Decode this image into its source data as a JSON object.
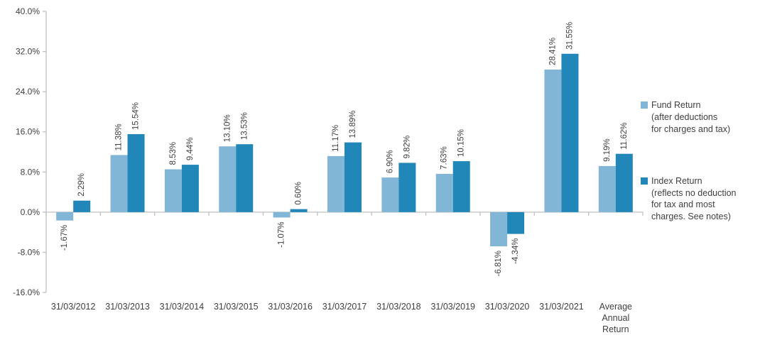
{
  "chart_data": {
    "type": "bar",
    "categories": [
      "31/03/2012",
      "31/03/2013",
      "31/03/2014",
      "31/03/2015",
      "31/03/2016",
      "31/03/2017",
      "31/03/2018",
      "31/03/2019",
      "31/03/2020",
      "31/03/2021",
      "Average\nAnnual\nReturn"
    ],
    "series": [
      {
        "name": "Fund Return (after deductions for charges and tax)",
        "color": "#82b6d7",
        "values": [
          -1.67,
          11.38,
          8.53,
          13.1,
          -1.07,
          11.17,
          6.9,
          7.63,
          -6.81,
          28.41,
          9.19
        ],
        "labels": [
          "-1.67%",
          "11.38%",
          "8.53%",
          "13.10%",
          "-1.07%",
          "11.17%",
          "6.90%",
          "7.63%",
          "-6.81%",
          "28.41%",
          "9.19%"
        ]
      },
      {
        "name": "Index Return (reflects no deduction for tax and most charges. See notes)",
        "color": "#2186b8",
        "values": [
          2.29,
          15.54,
          9.44,
          13.53,
          0.6,
          13.89,
          9.82,
          10.15,
          -4.34,
          31.55,
          11.62
        ],
        "labels": [
          "2.29%",
          "15.54%",
          "9.44%",
          "13.53%",
          "0.60%",
          "13.89%",
          "9.82%",
          "10.15%",
          "-4.34%",
          "31.55%",
          "11.62%"
        ]
      }
    ],
    "title": "",
    "xlabel": "",
    "ylabel": "",
    "ylim": [
      -16,
      40
    ],
    "ytick_step": 8,
    "ytick_labels": [
      "-16.0%",
      "-8.0%",
      "0.0%",
      "8.0%",
      "16.0%",
      "24.0%",
      "32.0%",
      "40.0%"
    ],
    "grid": false,
    "legend_position": "right",
    "axis_color": "#c0c0c0",
    "label_color": "#404040"
  },
  "legend": {
    "items": [
      {
        "label": "Fund Return\n(after deductions\nfor charges and tax)",
        "color": "#82b6d7"
      },
      {
        "label": "Index Return\n(reflects no deduction\nfor tax and most\ncharges. See notes)",
        "color": "#2186b8"
      }
    ]
  }
}
